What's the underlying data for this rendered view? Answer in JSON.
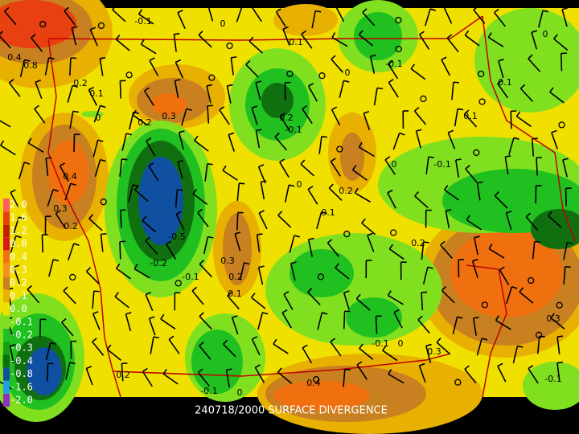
{
  "caption": "240718/2000 SURFACE DIVERGENCE",
  "legend": {
    "labels": [
      "2.0",
      "1.6",
      "1.2",
      "0.8",
      "0.4",
      "0.3",
      "0.2",
      "0.1",
      "0.0",
      "-0.1",
      "-0.2",
      "-0.3",
      "-0.4",
      "-0.8",
      "-1.6",
      "-2.0"
    ]
  },
  "contour_labels": [
    "-0.1",
    "0",
    "0.1",
    "-0.1",
    "0",
    "0.4",
    "0.8",
    "0.2",
    "0.1",
    "0",
    "0.3",
    "0.2",
    "0.2",
    "-0.1",
    "0",
    "0.1",
    "0.1",
    "0.4",
    "0.3",
    "0.2",
    "0",
    "-0.1",
    "0",
    "0.2",
    "0.1",
    "-0.5",
    "-0.2",
    "-0.1",
    "0.3",
    "0.2",
    "0.1",
    "0.2",
    "0.3",
    "0.3",
    "-0.1",
    "0",
    "0.2",
    "-0.1",
    "0",
    "0.4",
    "-0.1"
  ]
}
